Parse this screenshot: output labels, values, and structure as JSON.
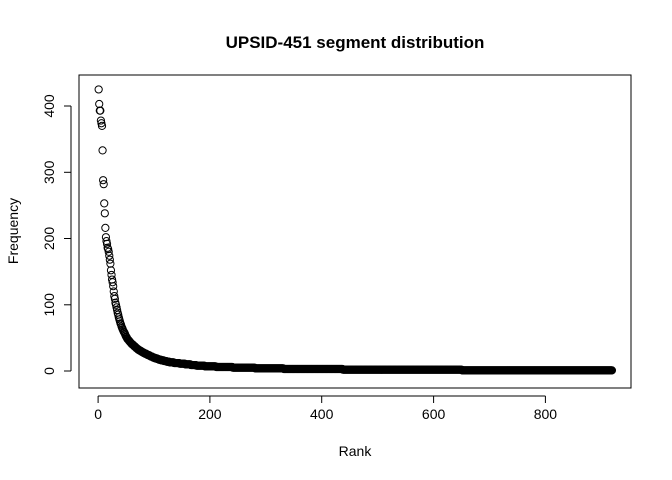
{
  "chart_data": {
    "type": "scatter",
    "title": "UPSID-451 segment distribution",
    "xlabel": "Rank",
    "ylabel": "Frequency",
    "xlim": [
      -20,
      940
    ],
    "ylim": [
      -17,
      442
    ],
    "x_ticks": [
      0,
      200,
      400,
      600,
      800
    ],
    "y_ticks": [
      0,
      100,
      200,
      300,
      400
    ],
    "x_tick_labels": [
      "0",
      "200",
      "400",
      "600",
      "800"
    ],
    "y_tick_labels": [
      "0",
      "100",
      "200",
      "300",
      "400"
    ],
    "grid": false,
    "legend": "none",
    "marker": "open-circle",
    "colors": {
      "marker": "#000000",
      "frame": "#000000",
      "background": "#ffffff"
    },
    "n_points": 919,
    "series": [
      {
        "x": [
          1,
          2,
          3,
          4,
          5,
          6,
          7,
          8,
          9,
          10,
          11,
          12,
          13,
          14,
          15,
          16,
          17,
          18,
          19,
          20,
          21,
          22,
          23,
          24,
          25,
          26,
          27,
          28,
          29,
          30,
          31,
          32,
          33,
          34,
          35,
          36,
          37,
          38,
          39,
          40,
          42,
          44,
          46,
          48,
          50,
          53,
          56,
          60,
          64,
          68,
          72,
          76,
          80,
          85,
          90,
          95,
          100,
          110,
          120,
          130,
          140,
          150,
          160,
          170,
          180,
          190,
          200,
          220,
          240,
          260,
          280,
          300,
          325,
          350,
          375,
          400,
          425,
          450,
          475,
          500,
          550,
          600,
          650,
          700,
          750,
          800,
          850,
          900,
          919
        ],
        "y": [
          425,
          403,
          393,
          393,
          378,
          374,
          370,
          333,
          288,
          282,
          253,
          238,
          216,
          202,
          196,
          192,
          186,
          184,
          180,
          174,
          168,
          162,
          152,
          145,
          138,
          134,
          128,
          120,
          113,
          109,
          103,
          100,
          96,
          92,
          88,
          85,
          81,
          78,
          75,
          72,
          67,
          63,
          59,
          56,
          52,
          48,
          45,
          41,
          38,
          35,
          32,
          30,
          28,
          26,
          24,
          22,
          20,
          17,
          15,
          13,
          12,
          11,
          10,
          9,
          8,
          7.5,
          7,
          6,
          5.5,
          5,
          4.5,
          4,
          3.6,
          3.2,
          3,
          2.8,
          2.6,
          2.4,
          2.2,
          2,
          1.8,
          1.6,
          1.5,
          1.4,
          1.3,
          1.2,
          1.1,
          1,
          1
        ]
      }
    ]
  }
}
